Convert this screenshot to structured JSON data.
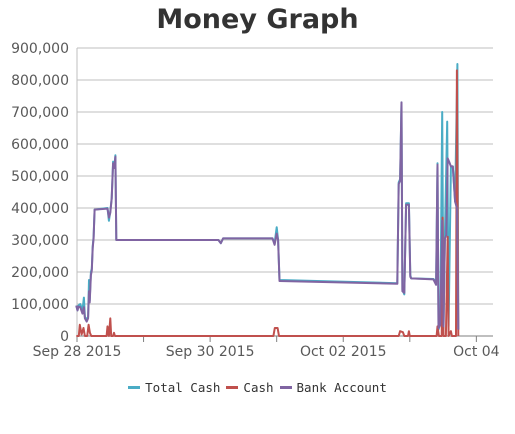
{
  "chart_data": {
    "type": "line",
    "title": "Money Graph",
    "xlabel": "",
    "ylabel": "",
    "ylim": [
      0,
      900000
    ],
    "yticks": [
      0,
      100000,
      200000,
      300000,
      400000,
      500000,
      600000,
      700000,
      800000,
      900000
    ],
    "ytick_labels": [
      "0",
      "100,000",
      "200,000",
      "300,000",
      "400,000",
      "500,000",
      "600,000",
      "700,000",
      "800,000",
      "900,000"
    ],
    "xlim": [
      "2015-09-28 00:00",
      "2015-10-04 06:00"
    ],
    "xticks": [
      {
        "date": "2015-09-28 00:00",
        "label": "Sep 28 2015"
      },
      {
        "date": "2015-09-30 00:00",
        "label": "Sep 30 2015"
      },
      {
        "date": "2015-10-02 00:00",
        "label": "Oct 02 2015"
      },
      {
        "date": "2015-10-04 00:00",
        "label": "Oct 04"
      }
    ],
    "minor_xticks": [
      "2015-09-29 00:00",
      "2015-10-01 00:00",
      "2015-10-03 00:00"
    ],
    "grid": "horizontal",
    "legend": "bottom",
    "series": [
      {
        "name": "Total Cash",
        "color": "#4aacc5",
        "points": [
          [
            "2015-09-27 23:45",
            95000
          ],
          [
            "2015-09-28 00:10",
            80000
          ],
          [
            "2015-09-28 00:30",
            95000
          ],
          [
            "2015-09-28 01:10",
            100000
          ],
          [
            "2015-09-28 02:00",
            80000
          ],
          [
            "2015-09-28 02:30",
            120000
          ],
          [
            "2015-09-28 02:50",
            60000
          ],
          [
            "2015-09-28 03:30",
            50000
          ],
          [
            "2015-09-28 04:00",
            60000
          ],
          [
            "2015-09-28 04:20",
            175000
          ],
          [
            "2015-09-28 04:35",
            110000
          ],
          [
            "2015-09-28 05:00",
            200000
          ],
          [
            "2015-09-28 05:20",
            210000
          ],
          [
            "2015-09-28 05:40",
            280000
          ],
          [
            "2015-09-28 06:00",
            310000
          ],
          [
            "2015-09-28 06:20",
            395000
          ],
          [
            "2015-09-28 11:00",
            400000
          ],
          [
            "2015-09-28 11:30",
            360000
          ],
          [
            "2015-09-28 12:00",
            390000
          ],
          [
            "2015-09-28 12:30",
            430000
          ],
          [
            "2015-09-28 13:00",
            545000
          ],
          [
            "2015-09-28 13:30",
            530000
          ],
          [
            "2015-09-28 13:50",
            565000
          ],
          [
            "2015-09-28 14:10",
            300000
          ],
          [
            "2015-09-30 00:00",
            300000
          ],
          [
            "2015-09-30 03:00",
            300000
          ],
          [
            "2015-09-30 03:50",
            290000
          ],
          [
            "2015-09-30 04:40",
            305000
          ],
          [
            "2015-09-30 22:30",
            305000
          ],
          [
            "2015-09-30 23:15",
            290000
          ],
          [
            "2015-10-01 00:00",
            340000
          ],
          [
            "2015-10-01 00:30",
            300000
          ],
          [
            "2015-10-01 01:00",
            175000
          ],
          [
            "2015-10-02 19:30",
            165000
          ],
          [
            "2015-10-02 20:00",
            480000
          ],
          [
            "2015-10-02 20:30",
            490000
          ],
          [
            "2015-10-02 21:00",
            730000
          ],
          [
            "2015-10-02 21:20",
            145000
          ],
          [
            "2015-10-02 22:00",
            130000
          ],
          [
            "2015-10-02 22:40",
            415000
          ],
          [
            "2015-10-02 23:40",
            415000
          ],
          [
            "2015-10-03 00:10",
            190000
          ],
          [
            "2015-10-03 00:30",
            180000
          ],
          [
            "2015-10-03 08:30",
            178000
          ],
          [
            "2015-10-03 09:30",
            170000
          ],
          [
            "2015-10-03 10:00",
            540000
          ],
          [
            "2015-10-03 10:20",
            20000
          ],
          [
            "2015-10-03 11:00",
            40000
          ],
          [
            "2015-10-03 11:40",
            700000
          ],
          [
            "2015-10-03 12:10",
            25000
          ],
          [
            "2015-10-03 12:40",
            310000
          ],
          [
            "2015-10-03 13:30",
            670000
          ],
          [
            "2015-10-03 14:00",
            30000
          ],
          [
            "2015-10-03 14:50",
            530000
          ],
          [
            "2015-10-03 15:30",
            530000
          ],
          [
            "2015-10-03 16:20",
            420000
          ],
          [
            "2015-10-03 17:10",
            850000
          ],
          [
            "2015-10-03 17:30",
            20000
          ]
        ]
      },
      {
        "name": "Cash",
        "color": "#c0504d",
        "points": [
          [
            "2015-09-27 23:45",
            0
          ],
          [
            "2015-09-28 00:40",
            0
          ],
          [
            "2015-09-28 01:00",
            35000
          ],
          [
            "2015-09-28 01:40",
            5000
          ],
          [
            "2015-09-28 02:20",
            25000
          ],
          [
            "2015-09-28 02:50",
            0
          ],
          [
            "2015-09-28 03:40",
            0
          ],
          [
            "2015-09-28 04:10",
            35000
          ],
          [
            "2015-09-28 04:40",
            10000
          ],
          [
            "2015-09-28 05:10",
            0
          ],
          [
            "2015-09-28 10:40",
            0
          ],
          [
            "2015-09-28 11:00",
            30000
          ],
          [
            "2015-09-28 11:30",
            0
          ],
          [
            "2015-09-28 12:00",
            55000
          ],
          [
            "2015-09-28 12:20",
            0
          ],
          [
            "2015-09-28 13:00",
            0
          ],
          [
            "2015-09-28 13:20",
            10000
          ],
          [
            "2015-09-28 13:40",
            0
          ],
          [
            "2015-09-30 22:50",
            0
          ],
          [
            "2015-09-30 23:20",
            25000
          ],
          [
            "2015-10-01 00:20",
            25000
          ],
          [
            "2015-10-01 00:50",
            0
          ],
          [
            "2015-10-02 20:00",
            0
          ],
          [
            "2015-10-02 20:30",
            15000
          ],
          [
            "2015-10-02 21:30",
            12000
          ],
          [
            "2015-10-02 22:00",
            0
          ],
          [
            "2015-10-02 23:20",
            0
          ],
          [
            "2015-10-02 23:40",
            15000
          ],
          [
            "2015-10-03 00:00",
            0
          ],
          [
            "2015-10-03 09:40",
            0
          ],
          [
            "2015-10-03 10:00",
            30000
          ],
          [
            "2015-10-03 10:30",
            0
          ],
          [
            "2015-10-03 11:30",
            0
          ],
          [
            "2015-10-03 11:50",
            370000
          ],
          [
            "2015-10-03 12:10",
            0
          ],
          [
            "2015-10-03 13:00",
            0
          ],
          [
            "2015-10-03 13:40",
            310000
          ],
          [
            "2015-10-03 14:00",
            0
          ],
          [
            "2015-10-03 14:50",
            15000
          ],
          [
            "2015-10-03 15:10",
            0
          ],
          [
            "2015-10-03 16:40",
            0
          ],
          [
            "2015-10-03 17:00",
            830000
          ],
          [
            "2015-10-03 17:30",
            0
          ]
        ]
      },
      {
        "name": "Bank Account",
        "color": "#8064a2",
        "points": [
          [
            "2015-09-27 23:45",
            95000
          ],
          [
            "2015-09-28 00:10",
            80000
          ],
          [
            "2015-09-28 00:30",
            92000
          ],
          [
            "2015-09-28 01:10",
            90000
          ],
          [
            "2015-09-28 02:00",
            70000
          ],
          [
            "2015-09-28 02:30",
            90000
          ],
          [
            "2015-09-28 02:50",
            55000
          ],
          [
            "2015-09-28 03:30",
            45000
          ],
          [
            "2015-09-28 04:00",
            55000
          ],
          [
            "2015-09-28 04:20",
            140000
          ],
          [
            "2015-09-28 04:35",
            105000
          ],
          [
            "2015-09-28 05:00",
            190000
          ],
          [
            "2015-09-28 05:20",
            205000
          ],
          [
            "2015-09-28 05:40",
            275000
          ],
          [
            "2015-09-28 06:00",
            305000
          ],
          [
            "2015-09-28 06:20",
            395000
          ],
          [
            "2015-09-28 11:00",
            398000
          ],
          [
            "2015-09-28 11:30",
            370000
          ],
          [
            "2015-09-28 12:00",
            385000
          ],
          [
            "2015-09-28 12:30",
            430000
          ],
          [
            "2015-09-28 13:00",
            540000
          ],
          [
            "2015-09-28 13:30",
            525000
          ],
          [
            "2015-09-28 13:50",
            560000
          ],
          [
            "2015-09-28 14:10",
            300000
          ],
          [
            "2015-09-30 00:00",
            300000
          ],
          [
            "2015-09-30 03:00",
            300000
          ],
          [
            "2015-09-30 03:50",
            290000
          ],
          [
            "2015-09-30 04:40",
            305000
          ],
          [
            "2015-09-30 22:30",
            305000
          ],
          [
            "2015-09-30 23:15",
            285000
          ],
          [
            "2015-10-01 00:00",
            320000
          ],
          [
            "2015-10-01 00:30",
            300000
          ],
          [
            "2015-10-01 01:00",
            172000
          ],
          [
            "2015-10-02 19:30",
            163000
          ],
          [
            "2015-10-02 20:00",
            475000
          ],
          [
            "2015-10-02 20:30",
            485000
          ],
          [
            "2015-10-02 21:00",
            730000
          ],
          [
            "2015-10-02 21:20",
            140000
          ],
          [
            "2015-10-02 22:00",
            135000
          ],
          [
            "2015-10-02 22:40",
            410000
          ],
          [
            "2015-10-02 23:40",
            410000
          ],
          [
            "2015-10-03 00:10",
            185000
          ],
          [
            "2015-10-03 00:30",
            180000
          ],
          [
            "2015-10-03 08:30",
            177000
          ],
          [
            "2015-10-03 09:30",
            160000
          ],
          [
            "2015-10-03 10:00",
            535000
          ],
          [
            "2015-10-03 10:20",
            25000
          ],
          [
            "2015-10-03 11:00",
            35000
          ],
          [
            "2015-10-03 11:40",
            360000
          ],
          [
            "2015-10-03 12:10",
            30000
          ],
          [
            "2015-10-03 12:40",
            305000
          ],
          [
            "2015-10-03 13:10",
            315000
          ],
          [
            "2015-10-03 13:40",
            555000
          ],
          [
            "2015-10-03 14:10",
            545000
          ],
          [
            "2015-10-03 14:50",
            530000
          ],
          [
            "2015-10-03 15:30",
            530000
          ],
          [
            "2015-10-03 16:20",
            420000
          ],
          [
            "2015-10-03 17:00",
            400000
          ],
          [
            "2015-10-03 17:30",
            20000
          ]
        ]
      }
    ]
  }
}
